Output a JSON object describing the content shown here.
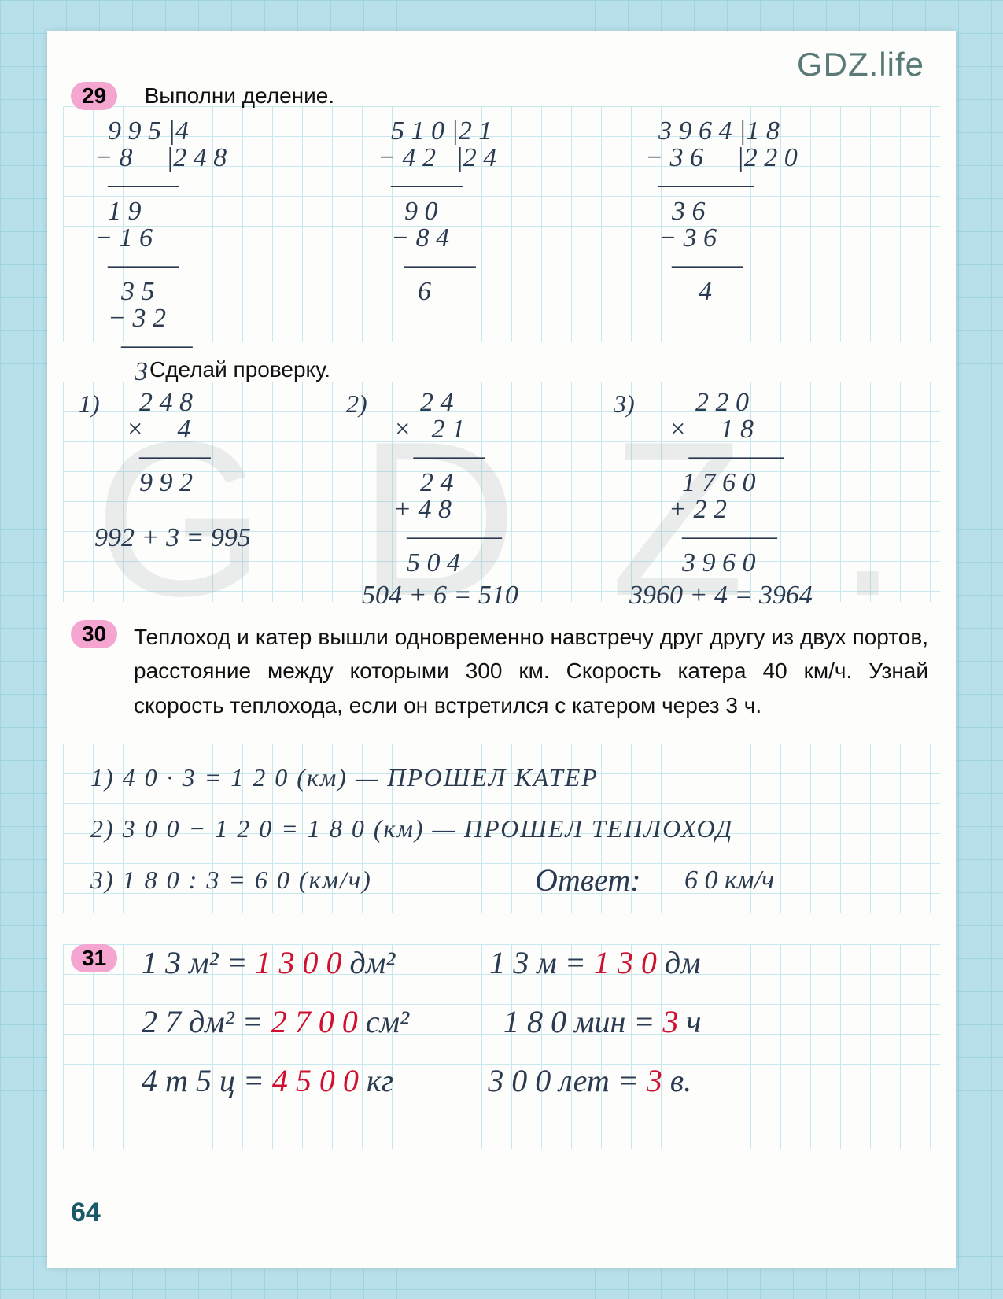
{
  "watermark": "GDZ.life",
  "pageNumber": "64",
  "ex29": {
    "badge": "29",
    "title": "Выполни деление.",
    "check_title": "Сделай проверку.",
    "div1": {
      "lines": [
        "  9 9 5 |4",
        "− 8     |2 4 8",
        "  ———",
        "  1 9",
        "− 1 6",
        "  ———",
        "    3 5",
        "  − 3 2",
        "    ———",
        "      3"
      ]
    },
    "div2": {
      "lines": [
        "  5 1 0 |2 1",
        "− 4 2   |2 4",
        "  ———",
        "    9 0",
        "  − 8 4",
        "    ———",
        "      6"
      ]
    },
    "div3": {
      "lines": [
        "  3 9 6 4 |1 8",
        "− 3 6     |2 2 0",
        "  ————",
        "    3 6",
        "  − 3 6",
        "    ———",
        "        4"
      ]
    },
    "check1": {
      "label": "1)",
      "lines": [
        "  2 4 8",
        "×     4",
        "  ———",
        "  9 9 2"
      ],
      "sum": "992 + 3 = 995"
    },
    "check2": {
      "label": "2)",
      "lines": [
        "    2 4",
        "×   2 1",
        "   ———",
        "    2 4",
        "+ 4 8",
        "  ————",
        "  5 0 4"
      ],
      "sum": "504 + 6 = 510"
    },
    "check3": {
      "label": "3)",
      "lines": [
        "    2 2 0",
        "×     1 8",
        "   ————",
        "  1 7 6 0",
        "+ 2 2",
        "  ————",
        "  3 9 6 0"
      ],
      "sum": "3960 + 4 = 3964"
    }
  },
  "ex30": {
    "badge": "30",
    "text": "Теплоход и катер вышли одновременно навстречу друг другу из двух портов, расстояние между которыми 300 км. Скорость катера 40 км/ч. Узнай скорость тепло­хода, если он встретился с катером через 3 ч.",
    "line1": "1)  4 0 · 3 = 1 2 0 (км)  —  ПРОШЕЛ  КАТЕР",
    "line2": "2)  3 0 0 − 1 2 0 = 1 8 0 (км)  —  ПРОШЕЛ  ТЕПЛОХОД",
    "line3": "3)  1 8 0 : 3 = 6 0 (км/ч)",
    "answer_label": "Ответ:",
    "answer_val": "6 0 км/ч"
  },
  "ex31": {
    "badge": "31",
    "rows": [
      {
        "l": "1 3 м² = ",
        "lv": "1 3 0 0",
        "lu": " дм²",
        "r": "1 3 м = ",
        "rv": "1 3 0",
        "ru": " дм"
      },
      {
        "l": "2 7 дм² = ",
        "lv": "2 7 0 0",
        "lu": " см²",
        "r": "1 8 0 мин = ",
        "rv": "3",
        "ru": " ч"
      },
      {
        "l": "4 т 5 ц = ",
        "lv": "4 5 0 0",
        "lu": " кг",
        "r": "3 0 0 лет = ",
        "rv": "3",
        "ru": " в."
      }
    ]
  }
}
